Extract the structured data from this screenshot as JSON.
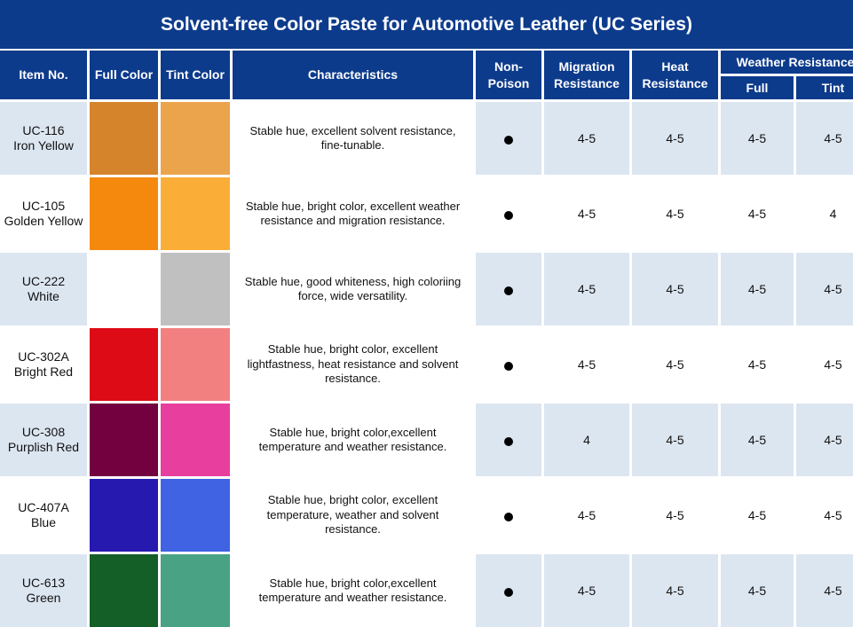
{
  "title": "Solvent-free Color Paste for Automotive Leather (UC Series)",
  "headers": {
    "item_no": "Item No.",
    "full_color": "Full Color",
    "tint_color": "Tint Color",
    "characteristics": "Characteristics",
    "non_poison_1": "Non-",
    "non_poison_2": "Poison",
    "migration_1": "Migration",
    "migration_2": "Resistance",
    "heat_1": "Heat",
    "heat_2": "Resistance",
    "weather": "Weather Resistance",
    "weather_full": "Full",
    "weather_tint": "Tint"
  },
  "rows": [
    {
      "code": "UC-116",
      "name": "Iron Yellow",
      "full_color_hex": "#d5842c",
      "tint_color_hex": "#eba44c",
      "characteristics": "Stable hue, excellent solvent resistance, fine-tunable.",
      "non_poison": true,
      "migration": "4-5",
      "heat": "4-5",
      "weather_full": "4-5",
      "weather_tint": "4-5"
    },
    {
      "code": "UC-105",
      "name": "Golden Yellow",
      "full_color_hex": "#f5890e",
      "tint_color_hex": "#fbae37",
      "characteristics": "Stable hue, bright color, excellent weather resistance and migration resistance.",
      "non_poison": true,
      "migration": "4-5",
      "heat": "4-5",
      "weather_full": "4-5",
      "weather_tint": "4"
    },
    {
      "code": "UC-222",
      "name": "White",
      "full_color_hex": "#ffffff",
      "tint_color_hex": "#c0c0c0",
      "characteristics": "Stable hue, good whiteness, high coloriing force, wide versatility.",
      "non_poison": true,
      "migration": "4-5",
      "heat": "4-5",
      "weather_full": "4-5",
      "weather_tint": "4-5"
    },
    {
      "code": "UC-302A",
      "name": "Bright Red",
      "full_color_hex": "#dd0b16",
      "tint_color_hex": "#f38081",
      "characteristics": "Stable hue, bright color, excellent lightfastness, heat resistance and solvent resistance.",
      "non_poison": true,
      "migration": "4-5",
      "heat": "4-5",
      "weather_full": "4-5",
      "weather_tint": "4-5"
    },
    {
      "code": "UC-308",
      "name": "Purplish Red",
      "full_color_hex": "#73003f",
      "tint_color_hex": "#e83f9f",
      "characteristics": "Stable hue, bright color,excellent temperature and weather resistance.",
      "non_poison": true,
      "migration": "4",
      "heat": "4-5",
      "weather_full": "4-5",
      "weather_tint": "4-5"
    },
    {
      "code": "UC-407A",
      "name": "Blue",
      "full_color_hex": "#2619b0",
      "tint_color_hex": "#3f63e3",
      "characteristics": "Stable hue, bright color, excellent temperature, weather and solvent resistance.",
      "non_poison": true,
      "migration": "4-5",
      "heat": "4-5",
      "weather_full": "4-5",
      "weather_tint": "4-5"
    },
    {
      "code": "UC-613",
      "name": "Green",
      "full_color_hex": "#145e27",
      "tint_color_hex": "#4aa285",
      "characteristics": "Stable hue, bright color,excellent temperature and weather resistance.",
      "non_poison": true,
      "migration": "4-5",
      "heat": "4-5",
      "weather_full": "4-5",
      "weather_tint": "4-5"
    }
  ]
}
